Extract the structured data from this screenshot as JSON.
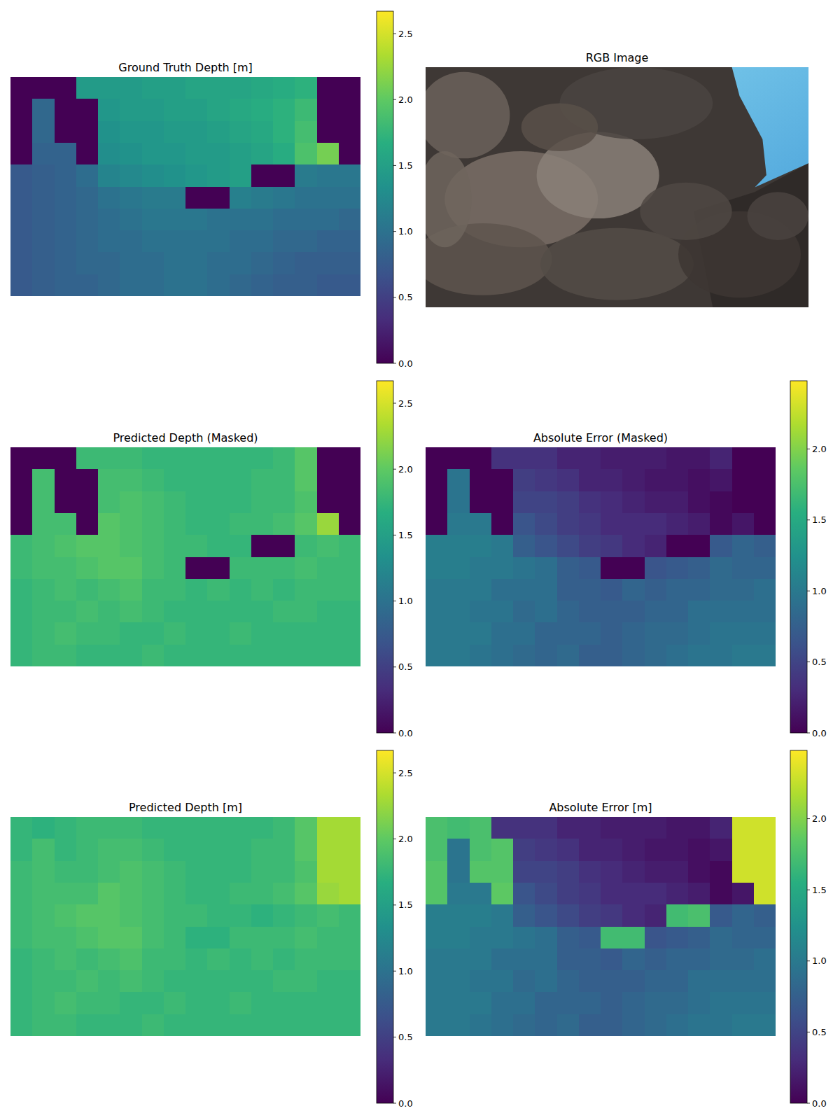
{
  "chart_data": [
    {
      "type": "heatmap",
      "title": "Ground Truth Depth [m]",
      "tick_labels": false,
      "color_range": [
        0,
        2.67
      ],
      "color_ticks": [
        {
          "value": 0,
          "label": "0.0"
        },
        0.5,
        {
          "value": 1,
          "label": "1.0"
        },
        1.5,
        {
          "value": 2,
          "label": "2.0"
        },
        2.5
      ],
      "cells": [
        [
          0,
          0,
          0,
          1.45,
          1.45,
          1.45,
          1.5,
          1.5,
          1.55,
          1.55,
          1.55,
          1.6,
          1.65,
          1.7,
          0,
          0
        ],
        [
          0,
          0.9,
          0,
          0,
          1.4,
          1.45,
          1.45,
          1.5,
          1.5,
          1.55,
          1.6,
          1.65,
          1.7,
          1.8,
          0,
          0
        ],
        [
          0,
          0.9,
          0,
          0,
          1.35,
          1.4,
          1.4,
          1.45,
          1.45,
          1.5,
          1.55,
          1.6,
          1.7,
          1.85,
          0,
          0
        ],
        [
          0,
          0.85,
          0.85,
          0,
          1.3,
          1.35,
          1.4,
          1.4,
          1.45,
          1.45,
          1.5,
          1.55,
          1.65,
          1.9,
          2.1,
          0
        ],
        [
          0.75,
          0.8,
          0.85,
          0.95,
          1.2,
          1.25,
          1.3,
          1.35,
          1.4,
          1.45,
          1.5,
          0,
          0,
          1.1,
          1.05,
          1.05
        ],
        [
          0.75,
          0.8,
          0.85,
          0.9,
          1.0,
          1.05,
          1.1,
          1.1,
          0,
          0,
          1.15,
          1.1,
          1.05,
          1.0,
          1.0,
          1.0
        ],
        [
          0.75,
          0.8,
          0.85,
          0.9,
          0.95,
          1.0,
          1.05,
          1.05,
          1.05,
          1.0,
          1.0,
          1.0,
          0.95,
          0.95,
          0.95,
          0.9
        ],
        [
          0.75,
          0.8,
          0.85,
          0.9,
          0.95,
          0.95,
          1.0,
          1.0,
          1.0,
          1.0,
          0.95,
          0.95,
          0.9,
          0.9,
          0.85,
          0.85
        ],
        [
          0.75,
          0.8,
          0.85,
          0.9,
          0.9,
          0.95,
          0.95,
          1.0,
          1.0,
          0.95,
          0.95,
          0.9,
          0.85,
          0.8,
          0.8,
          0.8
        ],
        [
          0.75,
          0.8,
          0.85,
          0.85,
          0.9,
          0.95,
          0.95,
          1.0,
          1.0,
          0.95,
          0.9,
          0.85,
          0.8,
          0.8,
          0.75,
          0.75
        ]
      ]
    },
    {
      "type": "image",
      "title": "RGB Image"
    },
    {
      "type": "heatmap",
      "title": "Predicted Depth (Masked)",
      "tick_labels": false,
      "color_range": [
        0,
        2.67
      ],
      "color_ticks": [
        {
          "value": 0,
          "label": "0.0"
        },
        0.5,
        {
          "value": 1,
          "label": "1.0"
        },
        1.5,
        {
          "value": 2,
          "label": "2.0"
        },
        2.5
      ],
      "cells": [
        [
          0,
          0,
          0,
          1.8,
          1.8,
          1.8,
          1.75,
          1.75,
          1.75,
          1.75,
          1.75,
          1.75,
          1.8,
          1.95,
          0,
          0
        ],
        [
          0,
          1.85,
          0,
          0,
          1.85,
          1.85,
          1.8,
          1.75,
          1.75,
          1.75,
          1.75,
          1.8,
          1.8,
          1.95,
          0,
          0
        ],
        [
          0,
          1.85,
          0,
          0,
          1.85,
          1.9,
          1.85,
          1.8,
          1.75,
          1.75,
          1.75,
          1.8,
          1.8,
          1.9,
          0,
          0
        ],
        [
          0,
          1.85,
          1.85,
          0,
          1.95,
          1.9,
          1.85,
          1.8,
          1.75,
          1.75,
          1.8,
          1.8,
          1.85,
          1.95,
          2.25,
          0
        ],
        [
          1.8,
          1.85,
          1.9,
          1.95,
          1.95,
          1.9,
          1.85,
          1.8,
          1.8,
          1.75,
          1.75,
          0,
          0,
          1.8,
          1.85,
          1.8
        ],
        [
          1.8,
          1.85,
          1.85,
          1.9,
          1.95,
          1.95,
          1.85,
          1.8,
          0,
          0,
          1.8,
          1.8,
          1.8,
          1.85,
          1.8,
          1.8
        ],
        [
          1.75,
          1.8,
          1.85,
          1.8,
          1.85,
          1.9,
          1.8,
          1.8,
          1.75,
          1.8,
          1.75,
          1.8,
          1.75,
          1.8,
          1.8,
          1.8
        ],
        [
          1.75,
          1.8,
          1.8,
          1.85,
          1.8,
          1.85,
          1.8,
          1.75,
          1.75,
          1.75,
          1.75,
          1.75,
          1.8,
          1.8,
          1.75,
          1.75
        ],
        [
          1.75,
          1.8,
          1.85,
          1.8,
          1.8,
          1.75,
          1.75,
          1.8,
          1.75,
          1.75,
          1.8,
          1.75,
          1.75,
          1.75,
          1.75,
          1.75
        ],
        [
          1.75,
          1.8,
          1.8,
          1.75,
          1.75,
          1.75,
          1.8,
          1.75,
          1.75,
          1.75,
          1.75,
          1.75,
          1.75,
          1.75,
          1.75,
          1.75
        ]
      ]
    },
    {
      "type": "heatmap",
      "title": "Absolute Error (Masked)",
      "tick_labels": false,
      "color_range": [
        0,
        2.48
      ],
      "color_ticks": [
        {
          "value": 0,
          "label": "0.0"
        },
        0.5,
        {
          "value": 1,
          "label": "1.0"
        },
        1.5,
        {
          "value": 2,
          "label": "2.0"
        }
      ],
      "cells": [
        [
          0,
          0,
          0,
          0.35,
          0.35,
          0.35,
          0.25,
          0.25,
          0.2,
          0.2,
          0.2,
          0.15,
          0.15,
          0.25,
          0,
          0
        ],
        [
          0,
          0.95,
          0,
          0,
          0.45,
          0.4,
          0.35,
          0.25,
          0.25,
          0.2,
          0.15,
          0.15,
          0.1,
          0.15,
          0,
          0
        ],
        [
          0,
          0.95,
          0,
          0,
          0.5,
          0.5,
          0.45,
          0.35,
          0.3,
          0.25,
          0.2,
          0.2,
          0.1,
          0.05,
          0,
          0
        ],
        [
          0,
          1.0,
          1.0,
          0,
          0.65,
          0.55,
          0.45,
          0.4,
          0.3,
          0.3,
          0.3,
          0.25,
          0.2,
          0.05,
          0.15,
          0
        ],
        [
          1.05,
          1.05,
          1.05,
          1.0,
          0.75,
          0.65,
          0.55,
          0.45,
          0.4,
          0.3,
          0.25,
          0,
          0,
          0.7,
          0.8,
          0.75
        ],
        [
          1.05,
          1.05,
          1.0,
          1.0,
          0.95,
          0.9,
          0.75,
          0.7,
          0,
          0,
          0.65,
          0.7,
          0.75,
          0.85,
          0.8,
          0.8
        ],
        [
          1.0,
          1.0,
          1.0,
          0.9,
          0.9,
          0.9,
          0.75,
          0.75,
          0.7,
          0.8,
          0.75,
          0.8,
          0.8,
          0.85,
          0.85,
          0.9
        ],
        [
          1.0,
          1.0,
          0.95,
          0.95,
          0.85,
          0.9,
          0.8,
          0.75,
          0.75,
          0.75,
          0.8,
          0.8,
          0.9,
          0.9,
          0.9,
          0.9
        ],
        [
          1.0,
          1.0,
          1.0,
          0.9,
          0.9,
          0.8,
          0.8,
          0.8,
          0.75,
          0.8,
          0.85,
          0.85,
          0.9,
          0.95,
          0.95,
          0.95
        ],
        [
          1.0,
          1.0,
          0.95,
          0.9,
          0.85,
          0.8,
          0.85,
          0.75,
          0.75,
          0.8,
          0.85,
          0.9,
          0.95,
          0.95,
          1.0,
          1.0
        ]
      ]
    },
    {
      "type": "heatmap",
      "title": "Predicted Depth [m]",
      "tick_labels": false,
      "color_range": [
        0,
        2.67
      ],
      "color_ticks": [
        {
          "value": 0,
          "label": "0.0"
        },
        0.5,
        {
          "value": 1,
          "label": "1.0"
        },
        1.5,
        {
          "value": 2,
          "label": "2.0"
        },
        2.5
      ],
      "cells": [
        [
          1.75,
          1.7,
          1.75,
          1.8,
          1.8,
          1.8,
          1.75,
          1.75,
          1.75,
          1.75,
          1.75,
          1.75,
          1.8,
          1.95,
          2.3,
          2.3
        ],
        [
          1.75,
          1.85,
          1.75,
          1.8,
          1.85,
          1.85,
          1.8,
          1.75,
          1.75,
          1.75,
          1.75,
          1.8,
          1.8,
          1.95,
          2.3,
          2.3
        ],
        [
          1.8,
          1.85,
          1.8,
          1.8,
          1.85,
          1.9,
          1.85,
          1.8,
          1.75,
          1.75,
          1.75,
          1.8,
          1.8,
          1.9,
          2.3,
          2.3
        ],
        [
          1.8,
          1.85,
          1.85,
          1.85,
          1.95,
          1.9,
          1.85,
          1.8,
          1.75,
          1.75,
          1.8,
          1.8,
          1.85,
          1.95,
          2.25,
          2.3
        ],
        [
          1.8,
          1.85,
          1.9,
          1.95,
          1.95,
          1.9,
          1.85,
          1.8,
          1.8,
          1.75,
          1.75,
          1.7,
          1.75,
          1.8,
          1.85,
          1.8
        ],
        [
          1.8,
          1.85,
          1.85,
          1.9,
          1.95,
          1.95,
          1.85,
          1.8,
          1.7,
          1.7,
          1.8,
          1.8,
          1.8,
          1.85,
          1.8,
          1.8
        ],
        [
          1.75,
          1.8,
          1.85,
          1.8,
          1.85,
          1.9,
          1.8,
          1.8,
          1.75,
          1.8,
          1.75,
          1.8,
          1.75,
          1.8,
          1.8,
          1.8
        ],
        [
          1.75,
          1.8,
          1.8,
          1.85,
          1.8,
          1.85,
          1.8,
          1.75,
          1.75,
          1.75,
          1.75,
          1.75,
          1.8,
          1.8,
          1.75,
          1.75
        ],
        [
          1.75,
          1.8,
          1.85,
          1.8,
          1.8,
          1.75,
          1.75,
          1.8,
          1.75,
          1.75,
          1.8,
          1.75,
          1.75,
          1.75,
          1.75,
          1.75
        ],
        [
          1.75,
          1.8,
          1.8,
          1.75,
          1.75,
          1.75,
          1.8,
          1.75,
          1.75,
          1.75,
          1.75,
          1.75,
          1.75,
          1.75,
          1.75,
          1.75
        ]
      ]
    },
    {
      "type": "heatmap",
      "title": "Absolute Error [m]",
      "tick_labels": false,
      "color_range": [
        0,
        2.48
      ],
      "color_ticks": [
        {
          "value": 0,
          "label": "0.0"
        },
        0.5,
        {
          "value": 1,
          "label": "1.0"
        },
        1.5,
        {
          "value": 2,
          "label": "2.0"
        }
      ],
      "cells": [
        [
          1.75,
          1.7,
          1.75,
          0.35,
          0.35,
          0.35,
          0.25,
          0.25,
          0.2,
          0.2,
          0.2,
          0.15,
          0.15,
          0.25,
          2.3,
          2.3
        ],
        [
          1.75,
          0.95,
          1.75,
          1.8,
          0.45,
          0.4,
          0.35,
          0.25,
          0.25,
          0.2,
          0.15,
          0.15,
          0.1,
          0.15,
          2.3,
          2.3
        ],
        [
          1.8,
          0.95,
          1.8,
          1.8,
          0.5,
          0.5,
          0.45,
          0.35,
          0.3,
          0.25,
          0.2,
          0.2,
          0.1,
          0.05,
          2.3,
          2.3
        ],
        [
          1.8,
          1.0,
          1.0,
          1.85,
          0.65,
          0.55,
          0.45,
          0.4,
          0.3,
          0.3,
          0.3,
          0.25,
          0.2,
          0.05,
          0.15,
          2.3
        ],
        [
          1.05,
          1.05,
          1.05,
          1.0,
          0.75,
          0.65,
          0.55,
          0.45,
          0.4,
          0.3,
          0.25,
          1.7,
          1.75,
          0.7,
          0.8,
          0.75
        ],
        [
          1.05,
          1.05,
          1.0,
          1.0,
          0.95,
          0.9,
          0.75,
          0.7,
          1.7,
          1.7,
          0.65,
          0.7,
          0.75,
          0.85,
          0.8,
          0.8
        ],
        [
          1.0,
          1.0,
          1.0,
          0.9,
          0.9,
          0.9,
          0.75,
          0.75,
          0.7,
          0.8,
          0.75,
          0.8,
          0.8,
          0.85,
          0.85,
          0.9
        ],
        [
          1.0,
          1.0,
          0.95,
          0.95,
          0.85,
          0.9,
          0.8,
          0.75,
          0.75,
          0.75,
          0.8,
          0.8,
          0.9,
          0.9,
          0.9,
          0.9
        ],
        [
          1.0,
          1.0,
          1.0,
          0.9,
          0.9,
          0.8,
          0.8,
          0.8,
          0.75,
          0.8,
          0.85,
          0.85,
          0.9,
          0.95,
          0.95,
          0.95
        ],
        [
          1.0,
          1.0,
          0.95,
          0.9,
          0.85,
          0.8,
          0.85,
          0.75,
          0.75,
          0.8,
          0.85,
          0.9,
          0.95,
          0.95,
          1.0,
          1.0
        ]
      ]
    }
  ]
}
